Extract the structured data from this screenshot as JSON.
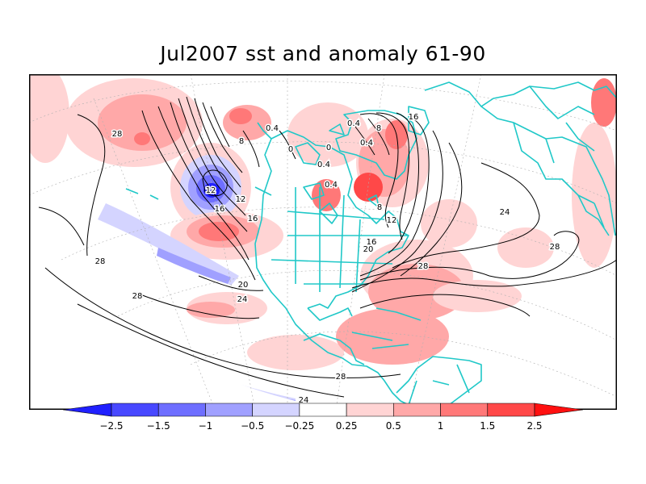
{
  "title": "Jul2007 sst and anomaly 61-90",
  "colors": {
    "land_outline": "#20c8c8",
    "contour": "#000000",
    "neg_strong": "#2020ff",
    "neg_mid": "#6e6eff",
    "neg_light": "#a0a0ff",
    "neg_faint": "#d4d4ff",
    "pos_faint": "#ffd4d4",
    "pos_light": "#ffa8a8",
    "pos_mid": "#ff7878",
    "pos_strong": "#ff4848",
    "pos_max": "#ff1010"
  },
  "contour_labels": [
    "28",
    "28",
    "28",
    "28",
    "28",
    "28",
    "24",
    "24",
    "24",
    "20",
    "20",
    "16",
    "16",
    "16",
    "16",
    "12",
    "12",
    "12",
    "8",
    "8",
    "8",
    "0",
    "0",
    "0.4",
    "0.4",
    "0.4",
    "0.4",
    "0.4"
  ],
  "colorbar": {
    "tick_labels": [
      "−2.5",
      "−1.5",
      "−1",
      "−0.5",
      "−0.25",
      "0.25",
      "0.5",
      "1",
      "1.5",
      "2.5"
    ],
    "colors": [
      "#2020ff",
      "#4848ff",
      "#6e6eff",
      "#a0a0ff",
      "#d4d4ff",
      "#ffffff",
      "#ffd4d4",
      "#ffa8a8",
      "#ff7878",
      "#ff4848",
      "#ff1010"
    ]
  }
}
